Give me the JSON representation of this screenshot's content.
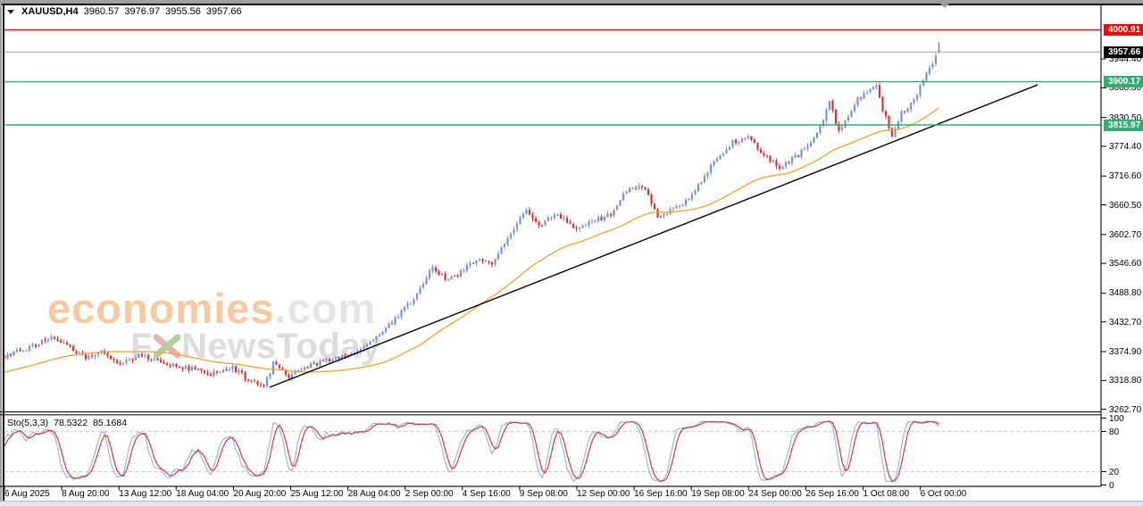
{
  "title_bar": {
    "symbol_period": "XAUUSD,H4",
    "open": "3960.57",
    "high": "3976.97",
    "low": "3955.56",
    "close": "3957.66"
  },
  "watermark": {
    "brand": "economies",
    "domain": ".com",
    "line2_left": "F",
    "line2_right": "NewsToday"
  },
  "indicator": {
    "name": "Sto(5,3,3)",
    "k_value": "78.5322",
    "d_value": "85.1684"
  },
  "colors": {
    "bull_candle": "#7394d9",
    "bear_candle": "#e03131",
    "ma_line": "#f0a22e",
    "resistance_line": "#e60c0c",
    "support_line": "#35ab74",
    "current_price_line": "#b4b4b4",
    "current_price_badge": "#000000",
    "sto_k": "#94b0e0",
    "sto_d": "#d92a2e",
    "sto_grid_dashed": "#c9c9c9",
    "trendline": "#000000",
    "shift_marker": "#999999"
  },
  "chart_data": {
    "type": "candlestick",
    "symbol": "XAUUSD",
    "timeframe": "H4",
    "last_bar": {
      "open": 3960.57,
      "high": 3976.97,
      "low": 3955.56,
      "close": 3957.66
    },
    "y_ticks": [
      "3944.40",
      "3888.30",
      "3830.50",
      "3774.40",
      "3716.60",
      "3660.50",
      "3602.70",
      "3546.60",
      "3488.80",
      "3432.70",
      "3374.90",
      "3318.80",
      "3262.70"
    ],
    "x_labels": [
      "6 Aug 2025",
      "8 Aug 20:00",
      "13 Aug 12:00",
      "18 Aug 04:00",
      "20 Aug 20:00",
      "25 Aug 12:00",
      "28 Aug 04:00",
      "2 Sep 00:00",
      "4 Sep 16:00",
      "9 Sep 08:00",
      "12 Sep 00:00",
      "16 Sep 16:00",
      "19 Sep 08:00",
      "24 Sep 00:00",
      "26 Sep 16:00",
      "1 Oct 08:00",
      "6 Oct 00:00"
    ],
    "price_levels": [
      {
        "price": 4000.91,
        "label": "4000.91",
        "badge_bg": "#e60c0c",
        "line_color": "#e60c0c",
        "line_width": 1.6,
        "style": "resistance"
      },
      {
        "price": 3957.66,
        "label": "3957.66",
        "badge_bg": "#000000",
        "line_color": "#b4b4b4",
        "line_width": 1.2,
        "style": "current-price"
      },
      {
        "price": 3900.17,
        "label": "3900.17",
        "badge_bg": "#35ab74",
        "line_color": "#35ab74",
        "line_width": 1.4,
        "style": "support"
      },
      {
        "price": 3815.97,
        "label": "3815.97",
        "badge_bg": "#35ab74",
        "line_color": "#35ab74",
        "line_width": 1.4,
        "style": "support"
      }
    ],
    "trendline": {
      "x1": 302,
      "price1": 3305.5,
      "x2": 1162,
      "price2": 3894.0
    },
    "moving_average": {
      "kind": "sma",
      "period": 45
    },
    "bars": {
      "count": 300,
      "prehistory": 60,
      "x0": 5,
      "spacing": 3.5
    },
    "close_path_anchors": [
      [
        -60,
        3268
      ],
      [
        -38,
        3312
      ],
      [
        -18,
        3342
      ],
      [
        0,
        3365
      ],
      [
        9,
        3386
      ],
      [
        15,
        3401
      ],
      [
        20,
        3391
      ],
      [
        26,
        3360
      ],
      [
        31,
        3372
      ],
      [
        37,
        3352
      ],
      [
        44,
        3369
      ],
      [
        52,
        3349
      ],
      [
        60,
        3342
      ],
      [
        66,
        3330
      ],
      [
        73,
        3344
      ],
      [
        79,
        3316
      ],
      [
        83,
        3305
      ],
      [
        86,
        3352
      ],
      [
        91,
        3327
      ],
      [
        97,
        3347
      ],
      [
        105,
        3360
      ],
      [
        112,
        3371
      ],
      [
        118,
        3397
      ],
      [
        125,
        3438
      ],
      [
        131,
        3478
      ],
      [
        137,
        3540
      ],
      [
        142,
        3512
      ],
      [
        147,
        3534
      ],
      [
        152,
        3558
      ],
      [
        156,
        3547
      ],
      [
        162,
        3608
      ],
      [
        167,
        3652
      ],
      [
        171,
        3621
      ],
      [
        177,
        3643
      ],
      [
        183,
        3611
      ],
      [
        188,
        3629
      ],
      [
        194,
        3641
      ],
      [
        200,
        3698
      ],
      [
        205,
        3691
      ],
      [
        209,
        3637
      ],
      [
        214,
        3651
      ],
      [
        219,
        3671
      ],
      [
        226,
        3736
      ],
      [
        233,
        3783
      ],
      [
        238,
        3791
      ],
      [
        243,
        3757
      ],
      [
        248,
        3734
      ],
      [
        254,
        3757
      ],
      [
        260,
        3798
      ],
      [
        264,
        3860
      ],
      [
        267,
        3804
      ],
      [
        273,
        3866
      ],
      [
        279,
        3893
      ],
      [
        281,
        3845
      ],
      [
        284,
        3797
      ],
      [
        287,
        3838
      ],
      [
        291,
        3864
      ],
      [
        294,
        3903
      ],
      [
        297,
        3938
      ],
      [
        299,
        3957.66
      ]
    ],
    "stochastic": {
      "name": "Sto(5,3,3)",
      "k_period": 5,
      "slowing": 3,
      "d_period": 3,
      "k_last": 78.5322,
      "d_last": 85.1684,
      "scale_labels": [
        "100",
        "80",
        "20",
        "0"
      ],
      "dashed_levels": [
        80,
        20
      ]
    }
  }
}
